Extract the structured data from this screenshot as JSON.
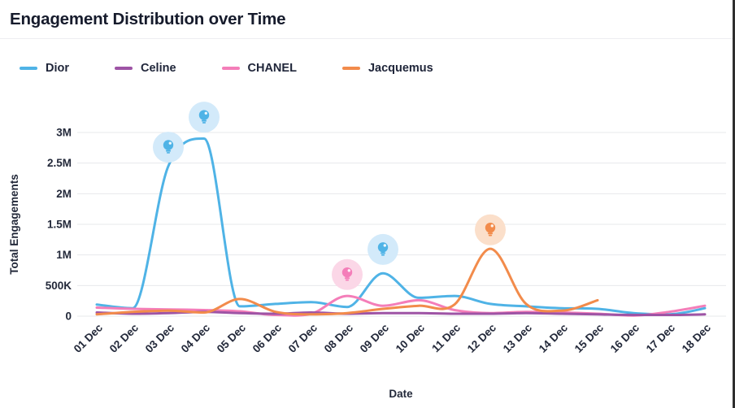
{
  "header": {
    "title": "Engagement Distribution over Time",
    "buttons": [
      {
        "icon": "lightbulb-icon",
        "active": true
      },
      {
        "icon": "refresh-icon",
        "active": false
      },
      {
        "icon": "bar-chart-icon",
        "active": false
      },
      {
        "icon": "ellipsis-icon",
        "active": false
      }
    ],
    "accent_color": "#2563eb"
  },
  "chart_data": {
    "type": "line",
    "title": "Engagement Distribution over Time",
    "xlabel": "Date",
    "ylabel": "Total Engagements",
    "ylim": [
      0,
      3000000
    ],
    "grid": true,
    "legend_position": "top",
    "grid_color": "#e7e8eb",
    "categories": [
      "01 Dec",
      "02 Dec",
      "03 Dec",
      "04 Dec",
      "05 Dec",
      "06 Dec",
      "07 Dec",
      "08 Dec",
      "09 Dec",
      "10 Dec",
      "11 Dec",
      "12 Dec",
      "13 Dec",
      "14 Dec",
      "15 Dec",
      "16 Dec",
      "17 Dec",
      "18 Dec"
    ],
    "y_ticks": [
      {
        "label": "0",
        "value": 0
      },
      {
        "label": "500K",
        "value": 500000
      },
      {
        "label": "1M",
        "value": 1000000
      },
      {
        "label": "1.5M",
        "value": 1500000
      },
      {
        "label": "2M",
        "value": 2000000
      },
      {
        "label": "2.5M",
        "value": 2500000
      },
      {
        "label": "3M",
        "value": 3000000
      }
    ],
    "series": [
      {
        "name": "Dior",
        "color": "#4FB3E6",
        "tint": "#d3eafa",
        "values": [
          190000,
          130000,
          2450000,
          2900000,
          160000,
          200000,
          230000,
          150000,
          700000,
          300000,
          330000,
          200000,
          160000,
          130000,
          120000,
          50000,
          30000,
          130000
        ]
      },
      {
        "name": "CHANEL",
        "color": "#F47EB9",
        "tint": "#fbd7e7",
        "values": [
          140000,
          120000,
          110000,
          100000,
          80000,
          20000,
          40000,
          330000,
          170000,
          260000,
          100000,
          50000,
          70000,
          60000,
          40000,
          10000,
          70000,
          170000
        ]
      },
      {
        "name": "Celine",
        "color": "#9E54A5",
        "tint": "#e7d4ea",
        "values": [
          60000,
          40000,
          50000,
          70000,
          50000,
          40000,
          60000,
          40000,
          50000,
          50000,
          40000,
          40000,
          50000,
          40000,
          30000,
          20000,
          20000,
          30000
        ]
      },
      {
        "name": "Jacquemus",
        "color": "#F28B4B",
        "tint": "#fbdfca",
        "values": [
          30000,
          70000,
          90000,
          60000,
          280000,
          70000,
          30000,
          50000,
          120000,
          170000,
          190000,
          1100000,
          200000,
          90000,
          260000,
          null,
          null,
          null
        ]
      }
    ],
    "legend_order": [
      "Dior",
      "Celine",
      "CHANEL",
      "Jacquemus"
    ],
    "annotations": [
      {
        "category": "03 Dec",
        "series": "Dior",
        "value": 2760000
      },
      {
        "category": "04 Dec",
        "series": "Dior",
        "value": 3250000
      },
      {
        "category": "08 Dec",
        "series": "CHANEL",
        "value": 680000
      },
      {
        "category": "09 Dec",
        "series": "Dior",
        "value": 1090000
      },
      {
        "category": "12 Dec",
        "series": "Jacquemus",
        "value": 1410000
      }
    ]
  }
}
